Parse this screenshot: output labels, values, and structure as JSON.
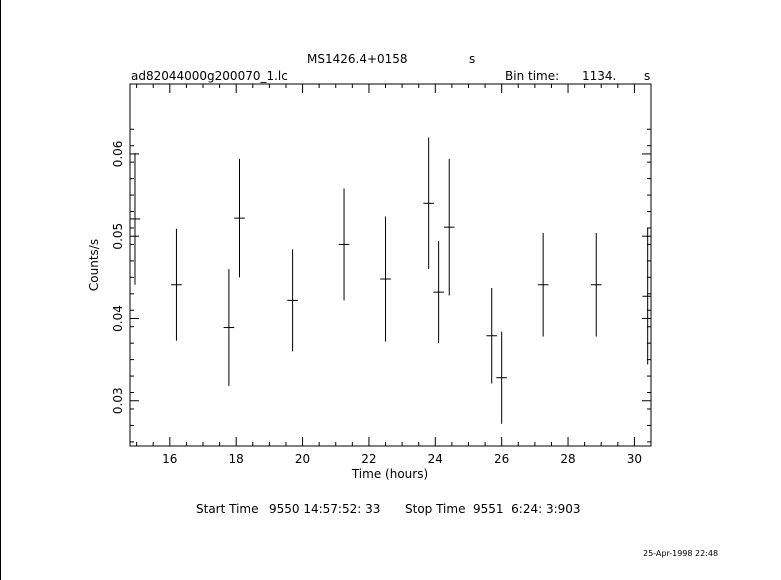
{
  "header": {
    "object": "MS1426.4+0158",
    "object_unit": "s",
    "file": "ad82044000g200070_1.lc",
    "bin_time_label": "Bin time:",
    "bin_time_value": "1134.",
    "bin_time_unit": "s"
  },
  "footer": {
    "start_label": "Start Time",
    "start_value": "9550 14:57:52: 33",
    "stop_label": "Stop Time",
    "stop_value": "9551  6:24: 3:903",
    "timestamp": "25-Apr-1998 22:48"
  },
  "chart_data": {
    "type": "scatter",
    "xlabel": "Time (hours)",
    "ylabel": "Counts/s",
    "xlim": [
      14.8,
      30.5
    ],
    "ylim": [
      0.0245,
      0.0685
    ],
    "xticks": [
      16,
      18,
      20,
      22,
      24,
      26,
      28,
      30
    ],
    "yticks": [
      0.03,
      0.04,
      0.05,
      0.06
    ],
    "xtick_labels": [
      "16",
      "18",
      "20",
      "22",
      "24",
      "26",
      "28",
      "30"
    ],
    "ytick_labels": [
      "0.03",
      "0.04",
      "0.05",
      "0.06"
    ],
    "points": [
      {
        "x": 14.95,
        "y": 0.0521,
        "xerr": 0.16,
        "yerr": 0.008
      },
      {
        "x": 16.2,
        "y": 0.0441,
        "xerr": 0.16,
        "yerr": 0.0068
      },
      {
        "x": 17.78,
        "y": 0.0389,
        "xerr": 0.16,
        "yerr": 0.0071
      },
      {
        "x": 18.1,
        "y": 0.0522,
        "xerr": 0.16,
        "yerr": 0.0072
      },
      {
        "x": 19.7,
        "y": 0.0422,
        "xerr": 0.16,
        "yerr": 0.0062
      },
      {
        "x": 21.25,
        "y": 0.049,
        "xerr": 0.16,
        "yerr": 0.0068
      },
      {
        "x": 22.5,
        "y": 0.0448,
        "xerr": 0.16,
        "yerr": 0.0076
      },
      {
        "x": 23.8,
        "y": 0.054,
        "xerr": 0.16,
        "yerr": 0.008
      },
      {
        "x": 24.1,
        "y": 0.0432,
        "xerr": 0.16,
        "yerr": 0.0062
      },
      {
        "x": 24.42,
        "y": 0.0511,
        "xerr": 0.16,
        "yerr": 0.0083
      },
      {
        "x": 25.7,
        "y": 0.0379,
        "xerr": 0.16,
        "yerr": 0.0058
      },
      {
        "x": 26.0,
        "y": 0.0328,
        "xerr": 0.16,
        "yerr": 0.0056
      },
      {
        "x": 27.25,
        "y": 0.0441,
        "xerr": 0.16,
        "yerr": 0.0063
      },
      {
        "x": 28.85,
        "y": 0.0441,
        "xerr": 0.16,
        "yerr": 0.0063
      },
      {
        "x": 30.4,
        "y": 0.0427,
        "xerr": 0.16,
        "yerr": 0.0083
      }
    ],
    "grid": false,
    "legend": "none"
  }
}
